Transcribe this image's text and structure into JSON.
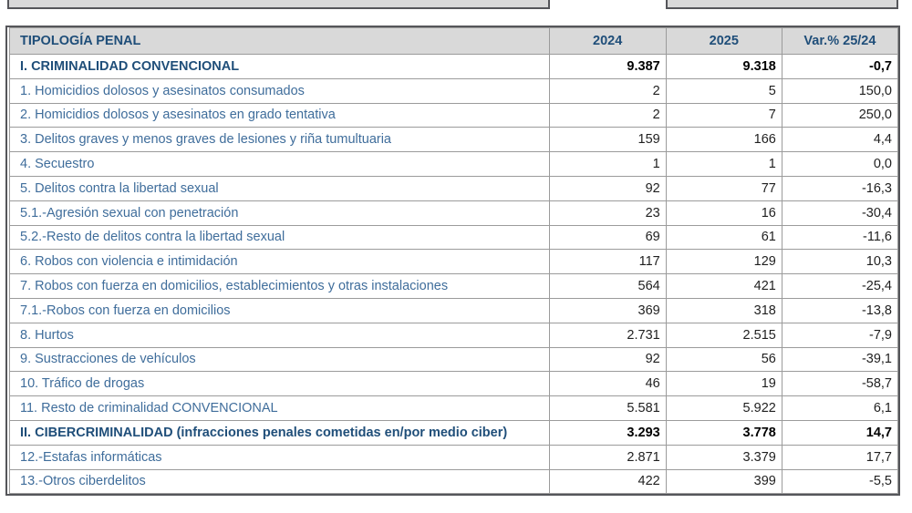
{
  "colors": {
    "header-bg": "#D9D9D9",
    "header-text": "#1F4E79",
    "section-text": "#1F4E79",
    "row-text": "#3F6D9B",
    "number-text": "#1F1F1F",
    "grid-border": "#9B9B9B",
    "outer-border": "#55565A"
  },
  "table": {
    "header": {
      "tipologia": "TIPOLOGÍA PENAL",
      "y2024": "2024",
      "y2025": "2025",
      "variation": "Var.% 25/24"
    },
    "rows": [
      {
        "label": "I. CRIMINALIDAD CONVENCIONAL",
        "v2024": "9.387",
        "v2025": "9.318",
        "variation": "-0,7",
        "section": true
      },
      {
        "label": "1. Homicidios dolosos y asesinatos consumados",
        "v2024": "2",
        "v2025": "5",
        "variation": "150,0",
        "section": false
      },
      {
        "label": "2. Homicidios dolosos y asesinatos en grado tentativa",
        "v2024": "2",
        "v2025": "7",
        "variation": "250,0",
        "section": false
      },
      {
        "label": "3. Delitos graves y menos graves de lesiones y riña tumultuaria",
        "v2024": "159",
        "v2025": "166",
        "variation": "4,4",
        "section": false
      },
      {
        "label": "4. Secuestro",
        "v2024": "1",
        "v2025": "1",
        "variation": "0,0",
        "section": false
      },
      {
        "label": "5. Delitos contra la libertad sexual",
        "v2024": "92",
        "v2025": "77",
        "variation": "-16,3",
        "section": false
      },
      {
        "label": "5.1.-Agresión sexual con penetración",
        "v2024": "23",
        "v2025": "16",
        "variation": "-30,4",
        "section": false
      },
      {
        "label": "5.2.-Resto de delitos contra la libertad sexual",
        "v2024": "69",
        "v2025": "61",
        "variation": "-11,6",
        "section": false
      },
      {
        "label": "6. Robos con violencia e intimidación",
        "v2024": "117",
        "v2025": "129",
        "variation": "10,3",
        "section": false
      },
      {
        "label": "7. Robos con fuerza en domicilios, establecimientos y otras instalaciones",
        "v2024": "564",
        "v2025": "421",
        "variation": "-25,4",
        "section": false
      },
      {
        "label": "7.1.-Robos con fuerza en domicilios",
        "v2024": "369",
        "v2025": "318",
        "variation": "-13,8",
        "section": false
      },
      {
        "label": "8. Hurtos",
        "v2024": "2.731",
        "v2025": "2.515",
        "variation": "-7,9",
        "section": false
      },
      {
        "label": "9. Sustracciones de vehículos",
        "v2024": "92",
        "v2025": "56",
        "variation": "-39,1",
        "section": false
      },
      {
        "label": "10. Tráfico de drogas",
        "v2024": "46",
        "v2025": "19",
        "variation": "-58,7",
        "section": false
      },
      {
        "label": "11. Resto de criminalidad CONVENCIONAL",
        "v2024": "5.581",
        "v2025": "5.922",
        "variation": "6,1",
        "section": false
      },
      {
        "label": "II. CIBERCRIMINALIDAD (infracciones penales cometidas en/por medio ciber)",
        "v2024": "3.293",
        "v2025": "3.778",
        "variation": "14,7",
        "section": true
      },
      {
        "label": "12.-Estafas informáticas",
        "v2024": "2.871",
        "v2025": "3.379",
        "variation": "17,7",
        "section": false
      },
      {
        "label": "13.-Otros ciberdelitos",
        "v2024": "422",
        "v2025": "399",
        "variation": "-5,5",
        "section": false
      }
    ]
  }
}
